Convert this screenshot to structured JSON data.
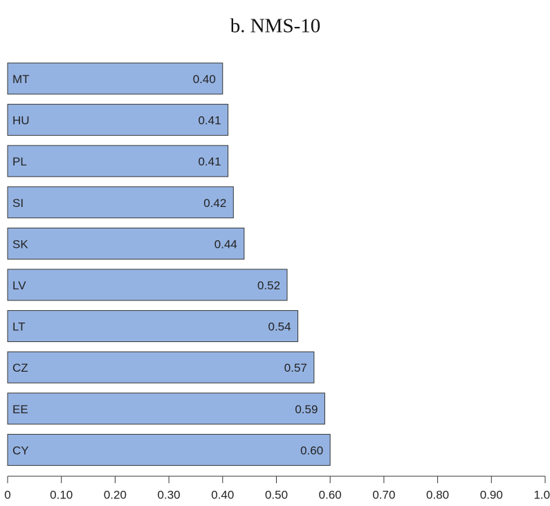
{
  "chart_data": {
    "type": "bar",
    "orientation": "horizontal",
    "title": "b. NMS-10",
    "categories": [
      "MT",
      "HU",
      "PL",
      "SI",
      "SK",
      "LV",
      "LT",
      "CZ",
      "EE",
      "CY"
    ],
    "values": [
      0.4,
      0.41,
      0.41,
      0.42,
      0.44,
      0.52,
      0.54,
      0.57,
      0.59,
      0.6
    ],
    "value_labels": [
      "0.40",
      "0.41",
      "0.41",
      "0.42",
      "0.44",
      "0.52",
      "0.54",
      "0.57",
      "0.59",
      "0.60"
    ],
    "color": "#95b3e2",
    "xlim": [
      0,
      1
    ],
    "xticks": [
      0,
      {
        "value": 0.1,
        "label": "0.10"
      },
      {
        "value": 0.2,
        "label": "0.20"
      },
      {
        "value": 0.3,
        "label": "0.30"
      },
      {
        "value": 0.4,
        "label": "0.40"
      },
      {
        "value": 0.5,
        "label": "0.50"
      },
      {
        "value": 0.6,
        "label": "0.60"
      },
      {
        "value": 0.7,
        "label": "0.70"
      },
      {
        "value": 0.8,
        "label": "0.80"
      },
      {
        "value": 0.9,
        "label": "0.90"
      },
      {
        "value": 1,
        "label": "1.00"
      }
    ],
    "grid": false
  }
}
